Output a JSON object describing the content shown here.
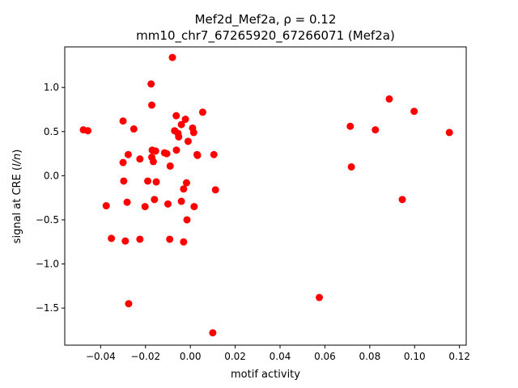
{
  "chart_data": {
    "type": "scatter",
    "title_line1": "Mef2d_Mef2a, ρ = 0.12",
    "title_line2": "mm10_chr7_67265920_67266071 (Mef2a)",
    "xlabel": "motif activity",
    "ylabel": "signal at CRE (",
    "ylabel_italic": "l/n",
    "ylabel_end": ")",
    "xlim": [
      -0.056,
      0.123
    ],
    "ylim": [
      -1.92,
      1.46
    ],
    "xticks": [
      {
        "value": -0.04,
        "label": "−0.04"
      },
      {
        "value": -0.02,
        "label": "−0.02"
      },
      {
        "value": 0.0,
        "label": "0.00"
      },
      {
        "value": 0.02,
        "label": "0.02"
      },
      {
        "value": 0.04,
        "label": "0.04"
      },
      {
        "value": 0.06,
        "label": "0.06"
      },
      {
        "value": 0.08,
        "label": "0.08"
      },
      {
        "value": 0.1,
        "label": "0.10"
      },
      {
        "value": 0.12,
        "label": "0.12"
      }
    ],
    "yticks": [
      {
        "value": -1.5,
        "label": "−1.5"
      },
      {
        "value": -1.0,
        "label": "−1.0"
      },
      {
        "value": -0.5,
        "label": "−0.5"
      },
      {
        "value": 0.0,
        "label": "0.0"
      },
      {
        "value": 0.5,
        "label": "0.5"
      },
      {
        "value": 1.0,
        "label": "1.0"
      }
    ],
    "marker_color": "#ff0000",
    "grid": false,
    "points": [
      {
        "x": -0.0477,
        "y": 0.52
      },
      {
        "x": -0.0457,
        "y": 0.51
      },
      {
        "x": -0.0375,
        "y": -0.34
      },
      {
        "x": -0.0352,
        "y": -0.71
      },
      {
        "x": -0.03,
        "y": 0.62
      },
      {
        "x": -0.03,
        "y": 0.15
      },
      {
        "x": -0.0297,
        "y": -0.06
      },
      {
        "x": -0.029,
        "y": -0.74
      },
      {
        "x": -0.0282,
        "y": -0.3
      },
      {
        "x": -0.0277,
        "y": 0.24
      },
      {
        "x": -0.0275,
        "y": -1.45
      },
      {
        "x": -0.0252,
        "y": 0.53
      },
      {
        "x": -0.0225,
        "y": 0.19
      },
      {
        "x": -0.0225,
        "y": -0.72
      },
      {
        "x": -0.0202,
        "y": -0.35
      },
      {
        "x": -0.019,
        "y": -0.06
      },
      {
        "x": -0.0175,
        "y": 1.04
      },
      {
        "x": -0.0172,
        "y": 0.8
      },
      {
        "x": -0.0172,
        "y": 0.21
      },
      {
        "x": -0.017,
        "y": 0.29
      },
      {
        "x": -0.0165,
        "y": 0.16
      },
      {
        "x": -0.016,
        "y": -0.27
      },
      {
        "x": -0.0155,
        "y": 0.28
      },
      {
        "x": -0.0152,
        "y": -0.07
      },
      {
        "x": -0.0115,
        "y": 0.26
      },
      {
        "x": -0.0105,
        "y": 0.25
      },
      {
        "x": -0.01,
        "y": -0.32
      },
      {
        "x": -0.0092,
        "y": -0.72
      },
      {
        "x": -0.009,
        "y": 0.11
      },
      {
        "x": -0.008,
        "y": 1.34
      },
      {
        "x": -0.007,
        "y": 0.51
      },
      {
        "x": -0.0063,
        "y": 0.68
      },
      {
        "x": -0.0062,
        "y": 0.29
      },
      {
        "x": -0.0055,
        "y": 0.48
      },
      {
        "x": -0.0052,
        "y": 0.44
      },
      {
        "x": -0.004,
        "y": 0.58
      },
      {
        "x": -0.004,
        "y": -0.29
      },
      {
        "x": -0.003,
        "y": -0.15
      },
      {
        "x": -0.003,
        "y": -0.75
      },
      {
        "x": -0.0022,
        "y": 0.64
      },
      {
        "x": -0.0017,
        "y": -0.08
      },
      {
        "x": -0.0015,
        "y": -0.5
      },
      {
        "x": -0.001,
        "y": 0.39
      },
      {
        "x": 0.001,
        "y": 0.54
      },
      {
        "x": 0.0015,
        "y": 0.49
      },
      {
        "x": 0.0017,
        "y": -0.35
      },
      {
        "x": 0.003,
        "y": 0.24
      },
      {
        "x": 0.0032,
        "y": 0.23
      },
      {
        "x": 0.0055,
        "y": 0.72
      },
      {
        "x": 0.01,
        "y": -1.78
      },
      {
        "x": 0.0105,
        "y": 0.24
      },
      {
        "x": 0.0112,
        "y": -0.16
      },
      {
        "x": 0.0575,
        "y": -1.38
      },
      {
        "x": 0.0713,
        "y": 0.56
      },
      {
        "x": 0.0718,
        "y": 0.1
      },
      {
        "x": 0.0825,
        "y": 0.52
      },
      {
        "x": 0.0887,
        "y": 0.87
      },
      {
        "x": 0.0945,
        "y": -0.27
      },
      {
        "x": 0.0998,
        "y": 0.73
      },
      {
        "x": 0.1155,
        "y": 0.49
      }
    ]
  }
}
